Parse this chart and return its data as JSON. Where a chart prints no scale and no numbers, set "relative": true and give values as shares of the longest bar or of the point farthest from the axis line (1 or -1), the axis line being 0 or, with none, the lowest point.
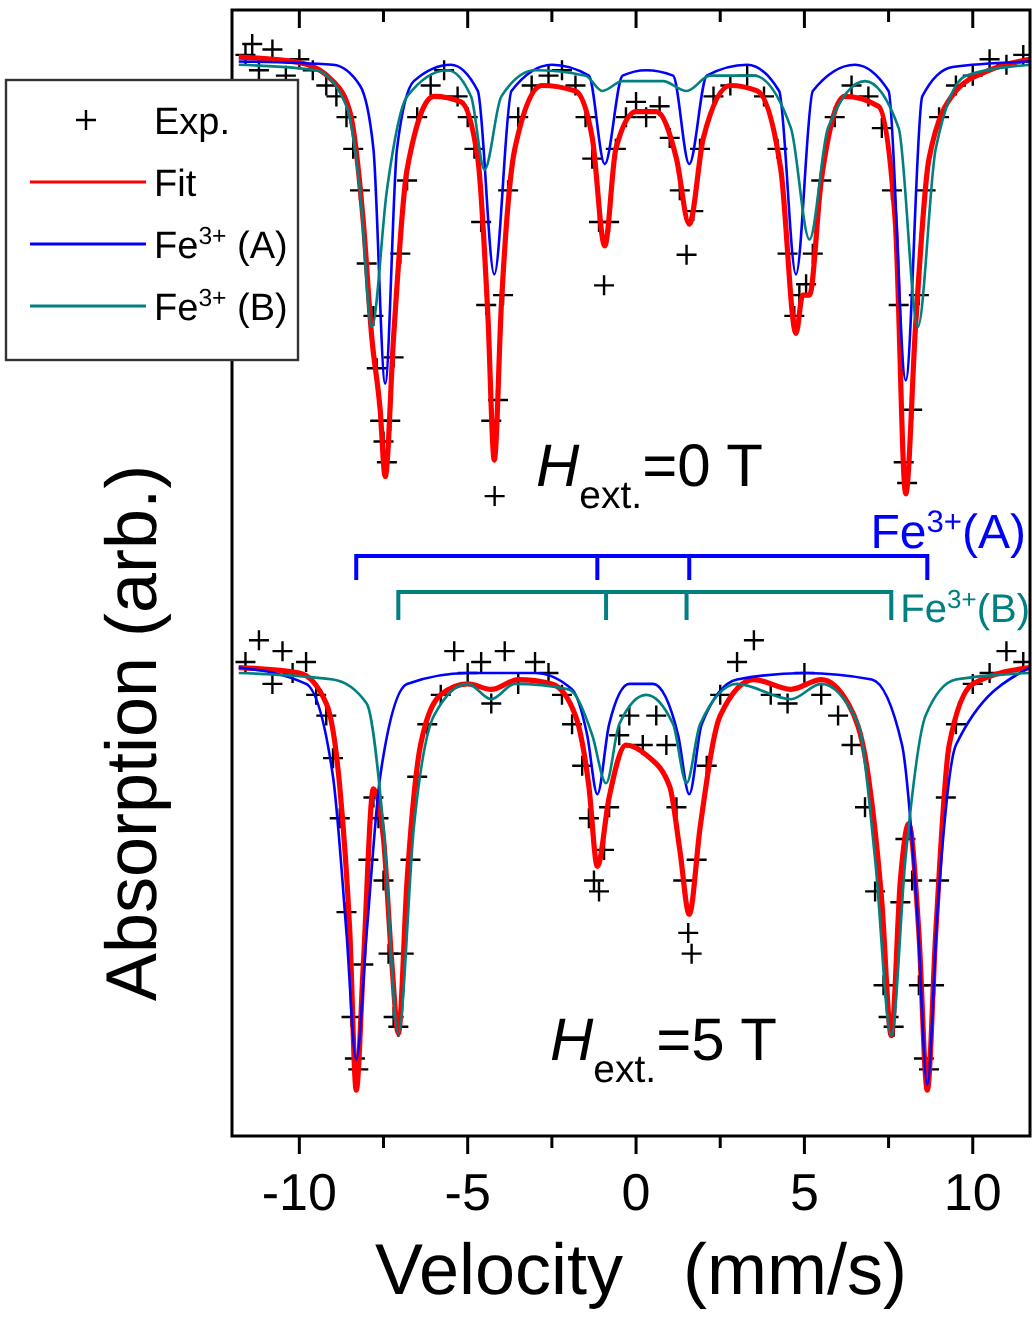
{
  "chart_data": {
    "type": "line",
    "relative": true,
    "xlabel": "Velocity   (mm/s)",
    "ylabel": "Absorption (arb.)",
    "xlim": [
      -12,
      11.7
    ],
    "xticks": [
      -10,
      {
        "value": -7.5,
        "label": null
      },
      -5,
      {
        "value": -2.5,
        "label": null
      },
      0,
      {
        "value": 2.5,
        "label": null
      },
      5,
      {
        "value": 7.5,
        "label": null
      },
      10
    ],
    "legend": "top left",
    "grid": false,
    "annotations": [
      "H$_{ext.}$=0 T",
      "H$_{ext.}$=5 T",
      "Fe$^{3+}$(A)",
      "Fe$^{3+}$(B)"
    ],
    "series": [
      {
        "name": "Exp.",
        "type": "scatter",
        "marker": "cross",
        "color": "#000000",
        "x": [
          -11.6,
          -11.4,
          -11.2,
          -10.8,
          -10.4,
          -10,
          -9.6,
          -9.2,
          -8.9,
          -8.6,
          -8.4,
          -8.2,
          -8.0,
          -7.8,
          -7.7,
          -7.6,
          -7.5,
          -7.4,
          -7.3,
          -7.2,
          -7.0,
          -6.8,
          -6.5,
          -6.1,
          -5.7,
          -5.3,
          -5.0,
          -4.8,
          -4.6,
          -4.45,
          -4.3,
          -4.2,
          -4.1,
          -3.95,
          -3.8,
          -3.5,
          -3.1,
          -2.6,
          -2.2,
          -1.8,
          -1.5,
          -1.3,
          -1.1,
          -0.95,
          -0.8,
          -0.6,
          -0.3,
          0,
          0.3,
          0.7,
          1.0,
          1.3,
          1.5,
          1.7,
          1.9,
          2.3,
          2.8,
          3.3,
          3.8,
          4.2,
          4.5,
          4.7,
          4.85,
          5.05,
          5.25,
          5.5,
          5.9,
          6.4,
          6.9,
          7.3,
          7.6,
          7.8,
          7.95,
          8.05,
          8.2,
          8.4,
          8.6,
          9.0,
          9.5,
          10,
          10.5,
          11,
          11.5
        ],
        "values": [
          0.99,
          1.0,
          0.976,
          0.995,
          0.971,
          0.986,
          0.976,
          0.962,
          0.952,
          0.933,
          0.904,
          0.866,
          0.799,
          0.751,
          0.703,
          0.655,
          0.636,
          0.617,
          0.655,
          0.713,
          0.808,
          0.875,
          0.933,
          0.962,
          0.976,
          0.952,
          0.933,
          0.904,
          0.837,
          0.761,
          0.655,
          0.586,
          0.674,
          0.77,
          0.866,
          0.933,
          0.962,
          0.971,
          0.976,
          0.962,
          0.933,
          0.895,
          0.837,
          0.779,
          0.837,
          0.904,
          0.933,
          0.947,
          0.933,
          0.943,
          0.914,
          0.866,
          0.807,
          0.847,
          0.904,
          0.952,
          0.962,
          0.971,
          0.952,
          0.904,
          0.808,
          0.751,
          0.77,
          0.78,
          0.808,
          0.875,
          0.933,
          0.962,
          0.952,
          0.923,
          0.866,
          0.761,
          0.617,
          0.598,
          0.665,
          0.77,
          0.866,
          0.933,
          0.962,
          0.971,
          0.986,
          0.981,
          0.99
        ]
      },
      {
        "name": "Fit",
        "type": "line",
        "color": "#ff0000",
        "x": [
          -11.8,
          -10,
          -9,
          -8.5,
          -8.1,
          -7.85,
          -7.6,
          -7.45,
          -7.2,
          -6.8,
          -6,
          -5.2,
          -4.7,
          -4.4,
          -4.21,
          -4.0,
          -3.6,
          -2.8,
          -1.8,
          -1.3,
          -0.93,
          -0.6,
          0,
          0.6,
          1.2,
          1.58,
          2.0,
          2.8,
          3.6,
          4.3,
          4.75,
          4.95,
          5.15,
          5.5,
          6.2,
          7.2,
          7.7,
          8.01,
          8.3,
          8.7,
          9.5,
          10.5,
          11.7
        ],
        "values": [
          0.988,
          0.983,
          0.966,
          0.938,
          0.837,
          0.732,
          0.665,
          0.604,
          0.732,
          0.885,
          0.952,
          0.947,
          0.895,
          0.751,
          0.619,
          0.761,
          0.904,
          0.962,
          0.957,
          0.914,
          0.815,
          0.904,
          0.938,
          0.938,
          0.895,
          0.835,
          0.914,
          0.962,
          0.957,
          0.885,
          0.735,
          0.77,
          0.77,
          0.875,
          0.952,
          0.943,
          0.837,
          0.588,
          0.741,
          0.895,
          0.957,
          0.976,
          0.986
        ]
      },
      {
        "name": "Fe$^{3+}$ (A)",
        "type": "line",
        "color": "#0000ff",
        "x": [
          -11.8,
          -9,
          -8.2,
          -7.8,
          -7.45,
          -7.1,
          -6.6,
          -5.5,
          -4.7,
          -4.21,
          -3.7,
          -2.5,
          -1.4,
          -0.93,
          -0.4,
          0.3,
          1.1,
          1.58,
          2.1,
          3.3,
          4.25,
          4.75,
          5.25,
          6.5,
          7.5,
          8.01,
          8.5,
          9.4,
          11.7
        ],
        "values": [
          0.984,
          0.981,
          0.962,
          0.904,
          0.689,
          0.904,
          0.966,
          0.981,
          0.957,
          0.789,
          0.957,
          0.981,
          0.971,
          0.89,
          0.971,
          0.976,
          0.971,
          0.89,
          0.971,
          0.981,
          0.957,
          0.789,
          0.957,
          0.981,
          0.957,
          0.692,
          0.952,
          0.979,
          0.984
        ]
      },
      {
        "name": "Fe$^{3+}$ (B)",
        "type": "line",
        "color": "#008080",
        "x": [
          -11.8,
          -9.5,
          -8.6,
          -8.2,
          -7.85,
          -7.4,
          -6.8,
          -5.6,
          -4.9,
          -4.5,
          -4.0,
          -3.0,
          -1.5,
          -1.0,
          -0.4,
          0.8,
          1.5,
          2.2,
          3.5,
          4.6,
          5.15,
          5.7,
          6.8,
          7.8,
          8.37,
          8.9,
          9.8,
          11.7
        ],
        "values": [
          0.981,
          0.976,
          0.943,
          0.866,
          0.741,
          0.866,
          0.952,
          0.976,
          0.952,
          0.885,
          0.952,
          0.976,
          0.971,
          0.957,
          0.966,
          0.966,
          0.957,
          0.971,
          0.971,
          0.923,
          0.821,
          0.923,
          0.966,
          0.923,
          0.741,
          0.904,
          0.971,
          0.981
        ]
      },
      {
        "type": "scatter",
        "marker": "cross",
        "color": "#000000",
        "x": [
          -11.6,
          -11.2,
          -10.8,
          -10.5,
          -10.2,
          -9.8,
          -9.5,
          -9.2,
          -9.0,
          -8.8,
          -8.6,
          -8.45,
          -8.35,
          -8.25,
          -8.1,
          -7.95,
          -7.8,
          -7.65,
          -7.5,
          -7.35,
          -7.2,
          -7.06,
          -6.9,
          -6.7,
          -6.5,
          -6.2,
          -5.8,
          -5.4,
          -5.0,
          -4.6,
          -4.3,
          -3.9,
          -3.5,
          -3.0,
          -2.6,
          -2.2,
          -1.9,
          -1.6,
          -1.4,
          -1.25,
          -1.1,
          -0.95,
          -0.8,
          -0.5,
          -0.2,
          0.2,
          0.6,
          0.9,
          1.2,
          1.4,
          1.55,
          1.65,
          1.8,
          2.1,
          2.5,
          3.0,
          3.5,
          4.0,
          4.5,
          5.0,
          5.5,
          6.0,
          6.4,
          6.8,
          7.1,
          7.35,
          7.5,
          7.65,
          7.85,
          8.0,
          8.2,
          8.4,
          8.55,
          8.7,
          8.85,
          9.0,
          9.2,
          9.5,
          10,
          10.5,
          11,
          11.5
        ],
        "values": [
          0.434,
          0.454,
          0.414,
          0.444,
          0.424,
          0.434,
          0.404,
          0.385,
          0.346,
          0.291,
          0.205,
          0.109,
          0.071,
          0.061,
          0.157,
          0.253,
          0.31,
          0.291,
          0.234,
          0.167,
          0.109,
          0.1,
          0.167,
          0.253,
          0.329,
          0.377,
          0.404,
          0.444,
          0.424,
          0.434,
          0.396,
          0.444,
          0.414,
          0.434,
          0.424,
          0.404,
          0.377,
          0.339,
          0.291,
          0.234,
          0.224,
          0.262,
          0.301,
          0.367,
          0.385,
          0.358,
          0.385,
          0.358,
          0.301,
          0.234,
          0.186,
          0.167,
          0.253,
          0.339,
          0.404,
          0.434,
          0.454,
          0.404,
          0.396,
          0.424,
          0.404,
          0.385,
          0.358,
          0.301,
          0.224,
          0.138,
          0.109,
          0.1,
          0.214,
          0.272,
          0.234,
          0.138,
          0.071,
          0.061,
          0.138,
          0.234,
          0.31,
          0.377,
          0.414,
          0.424,
          0.444,
          0.434
        ]
      },
      {
        "type": "line",
        "color": "#ff0000",
        "x": [
          -11.8,
          -10,
          -9.2,
          -8.8,
          -8.5,
          -8.31,
          -8.1,
          -7.8,
          -7.5,
          -7.25,
          -7.06,
          -6.8,
          -6.4,
          -5.8,
          -5,
          -4.3,
          -3.5,
          -2.5,
          -1.8,
          -1.4,
          -1.15,
          -0.8,
          -0.3,
          0.3,
          1.0,
          1.3,
          1.58,
          1.9,
          2.5,
          3.5,
          4.6,
          5.5,
          6.3,
          6.9,
          7.3,
          7.58,
          7.85,
          8.1,
          8.4,
          8.65,
          8.9,
          9.3,
          10,
          11.7
        ],
        "values": [
          0.429,
          0.424,
          0.396,
          0.32,
          0.186,
          0.042,
          0.157,
          0.318,
          0.272,
          0.157,
          0.094,
          0.234,
          0.358,
          0.404,
          0.414,
          0.409,
          0.418,
          0.414,
          0.385,
          0.32,
          0.247,
          0.31,
          0.358,
          0.349,
          0.32,
          0.262,
          0.203,
          0.282,
          0.385,
          0.418,
          0.409,
          0.418,
          0.396,
          0.329,
          0.214,
          0.092,
          0.234,
          0.286,
          0.186,
          0.042,
          0.186,
          0.358,
          0.414,
          0.429
        ]
      },
      {
        "type": "line",
        "color": "#0000ff",
        "x": [
          -11.8,
          -9.8,
          -9.0,
          -8.6,
          -8.31,
          -8.0,
          -7.6,
          -6.8,
          -5,
          -3,
          -1.9,
          -1.45,
          -1.15,
          -0.8,
          -0.2,
          0.5,
          1.25,
          1.58,
          1.95,
          3,
          5,
          7,
          7.9,
          8.35,
          8.65,
          8.95,
          9.5,
          11.7
        ],
        "values": [
          0.429,
          0.414,
          0.329,
          0.186,
          0.07,
          0.186,
          0.329,
          0.414,
          0.424,
          0.424,
          0.409,
          0.367,
          0.313,
          0.377,
          0.414,
          0.414,
          0.367,
          0.313,
          0.377,
          0.418,
          0.424,
          0.418,
          0.358,
          0.205,
          0.047,
          0.205,
          0.358,
          0.429
        ]
      },
      {
        "type": "line",
        "color": "#008080",
        "x": [
          -11.8,
          -9,
          -8.0,
          -7.5,
          -7.06,
          -6.6,
          -6.0,
          -5,
          -4.3,
          -3.6,
          -2,
          -1.3,
          -0.89,
          -0.5,
          0.3,
          1.1,
          1.5,
          1.9,
          3,
          4.6,
          5.5,
          6.6,
          7.1,
          7.58,
          8.0,
          8.6,
          9.5,
          11.7
        ],
        "values": [
          0.424,
          0.418,
          0.396,
          0.282,
          0.094,
          0.282,
          0.385,
          0.414,
          0.4,
          0.414,
          0.409,
          0.367,
          0.323,
          0.377,
          0.404,
          0.377,
          0.323,
          0.377,
          0.414,
          0.4,
          0.414,
          0.377,
          0.253,
          0.092,
          0.253,
          0.385,
          0.418,
          0.424
        ]
      }
    ]
  }
}
